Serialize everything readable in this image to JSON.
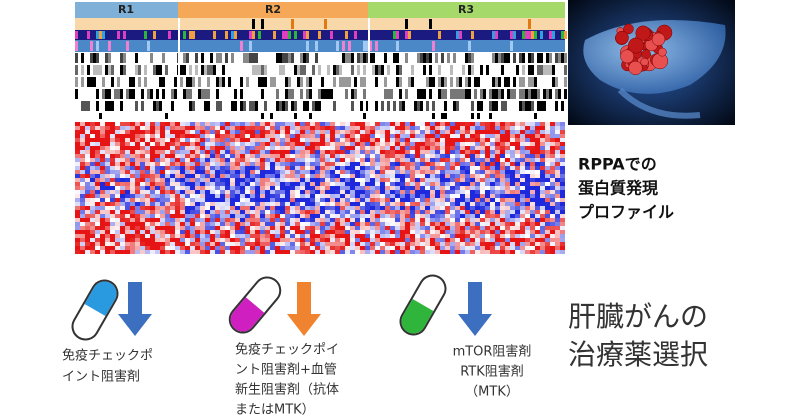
{
  "heatmap": {
    "groups": [
      "R1",
      "R2",
      "R3"
    ]
  },
  "caption": {
    "lines": [
      "RPPAでの",
      "蛋白質発現",
      "プロファイル"
    ]
  },
  "drugs": [
    {
      "lines": [
        "免疫チェックポ",
        "イント阻害剤"
      ]
    },
    {
      "lines": [
        "免疫チェックポイ",
        "ント阻害剤+血管",
        "新生阻害剤（抗体",
        "またはMTK）"
      ]
    },
    {
      "lines": [
        "mTOR阻害剤",
        "RTK阻害剤",
        "（MTK）"
      ]
    }
  ],
  "conclusion": {
    "lines": [
      "肝臓がんの",
      "治療薬選択"
    ]
  }
}
